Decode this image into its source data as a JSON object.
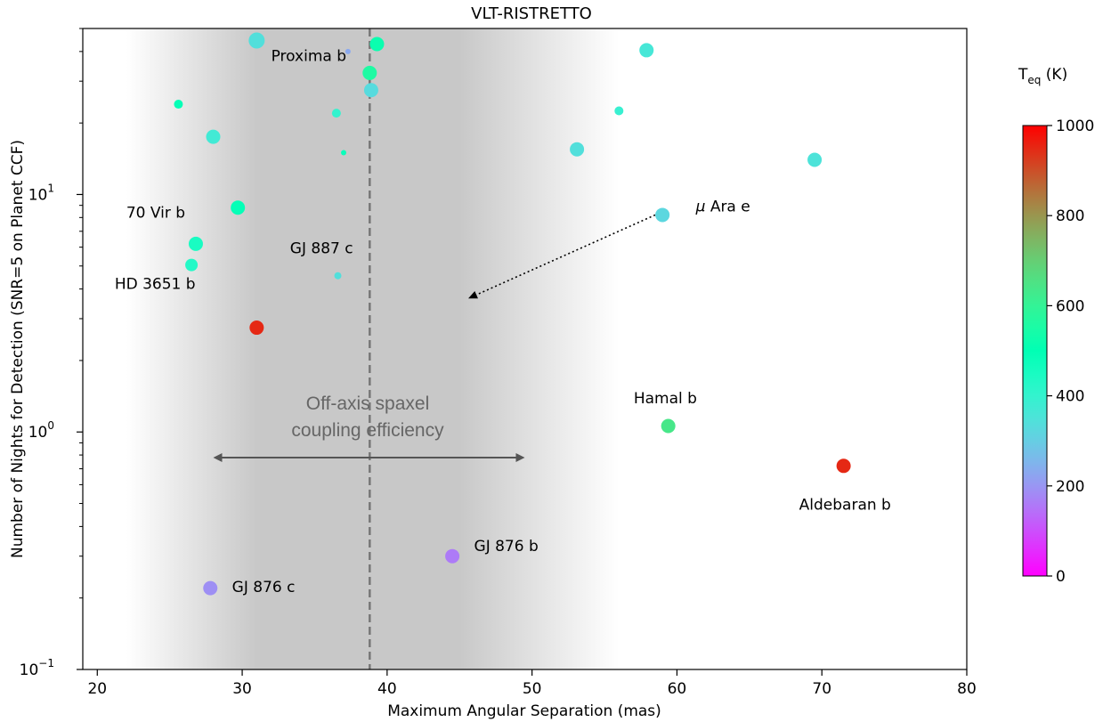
{
  "chart_data": {
    "type": "scatter",
    "title": "VLT-RISTRETTO",
    "xlabel": "Maximum Angular Separation (mas)",
    "ylabel": "Number of Nights for Detection (SNR=5 on Planet CCF)",
    "xlim": [
      19,
      80
    ],
    "ylim": [
      0.1,
      50
    ],
    "yscale": "log",
    "x_ticks": [
      20,
      30,
      40,
      50,
      60,
      70,
      80
    ],
    "y_ticks": [
      {
        "value": 0.1,
        "base": "10",
        "exp": "−1"
      },
      {
        "value": 1,
        "base": "10",
        "exp": "0"
      },
      {
        "value": 10,
        "base": "10",
        "exp": "1"
      }
    ],
    "grid": false,
    "colorbar": {
      "label_main": "T",
      "label_sub": "eq",
      "label_unit": " (K)",
      "min": 0,
      "max": 1000,
      "ticks": [
        0,
        200,
        400,
        600,
        800,
        1000
      ],
      "colormap": "rainbow"
    },
    "vertical_line": {
      "x": 38.8,
      "style": "dashed",
      "color": "#777777"
    },
    "shaded_band": {
      "from": 22,
      "to": 56,
      "core_from": 31,
      "core_to": 45,
      "color": "#c8c8c8"
    },
    "annotation": {
      "line1": "Off-axis spaxel",
      "line2": "coupling efficiency",
      "arrow_from": 28,
      "arrow_to": 49.5,
      "arrow_y": 0.78
    },
    "mu_arrow": {
      "from_x": 58.5,
      "from_y": 8.2,
      "to_x": 45.6,
      "to_y": 3.65
    },
    "points": [
      {
        "x": 31.0,
        "y": 44.5,
        "teq": 340,
        "size": 9
      },
      {
        "x": 37.3,
        "y": 40.0,
        "teq": 230,
        "size": 3
      },
      {
        "x": 39.3,
        "y": 43.0,
        "teq": 520,
        "size": 8
      },
      {
        "x": 57.9,
        "y": 40.5,
        "teq": 360,
        "size": 8
      },
      {
        "x": 38.8,
        "y": 32.5,
        "teq": 560,
        "size": 8
      },
      {
        "x": 38.9,
        "y": 27.5,
        "teq": 330,
        "size": 8
      },
      {
        "x": 25.6,
        "y": 24.0,
        "teq": 490,
        "size": 5
      },
      {
        "x": 36.5,
        "y": 22.0,
        "teq": 400,
        "size": 5
      },
      {
        "x": 56.0,
        "y": 22.5,
        "teq": 390,
        "size": 5
      },
      {
        "x": 28.0,
        "y": 17.5,
        "teq": 370,
        "size": 8
      },
      {
        "x": 37.0,
        "y": 15.0,
        "teq": 480,
        "size": 3
      },
      {
        "x": 53.1,
        "y": 15.5,
        "teq": 340,
        "size": 8
      },
      {
        "x": 69.5,
        "y": 14.0,
        "teq": 350,
        "size": 8
      },
      {
        "x": 29.7,
        "y": 8.8,
        "teq": 490,
        "size": 8
      },
      {
        "x": 59.0,
        "y": 8.2,
        "teq": 320,
        "size": 8
      },
      {
        "x": 26.8,
        "y": 6.2,
        "teq": 450,
        "size": 8
      },
      {
        "x": 26.5,
        "y": 5.05,
        "teq": 430,
        "size": 7
      },
      {
        "x": 36.6,
        "y": 4.55,
        "teq": 340,
        "size": 4
      },
      {
        "x": 31.0,
        "y": 2.75,
        "teq": 950,
        "size": 8
      },
      {
        "x": 59.4,
        "y": 1.06,
        "teq": 640,
        "size": 8
      },
      {
        "x": 71.5,
        "y": 0.72,
        "teq": 950,
        "size": 8
      },
      {
        "x": 44.5,
        "y": 0.3,
        "teq": 160,
        "size": 8
      },
      {
        "x": 27.8,
        "y": 0.22,
        "teq": 190,
        "size": 8
      }
    ],
    "labels": [
      {
        "text": "Proxima b",
        "x": 32.0,
        "y": 36.5,
        "anchor": "start"
      },
      {
        "text": "70 Vir b",
        "x": 22.0,
        "y": 8.0,
        "anchor": "start"
      },
      {
        "text": "GJ 887 c",
        "x": 33.3,
        "y": 5.65,
        "anchor": "start"
      },
      {
        "text": "HD 3651 b",
        "x": 21.2,
        "y": 4.0,
        "anchor": "start"
      },
      {
        "text": "Ara e",
        "x": 61.3,
        "y": 8.5,
        "anchor": "start",
        "prefix": "μ"
      },
      {
        "text": "Hamal b",
        "x": 59.2,
        "y": 1.32,
        "anchor": "middle"
      },
      {
        "text": "Aldebaran b",
        "x": 71.6,
        "y": 0.47,
        "anchor": "middle"
      },
      {
        "text": "GJ 876 b",
        "x": 46.0,
        "y": 0.315,
        "anchor": "start"
      },
      {
        "text": "GJ 876 c",
        "x": 29.3,
        "y": 0.212,
        "anchor": "start"
      }
    ]
  }
}
